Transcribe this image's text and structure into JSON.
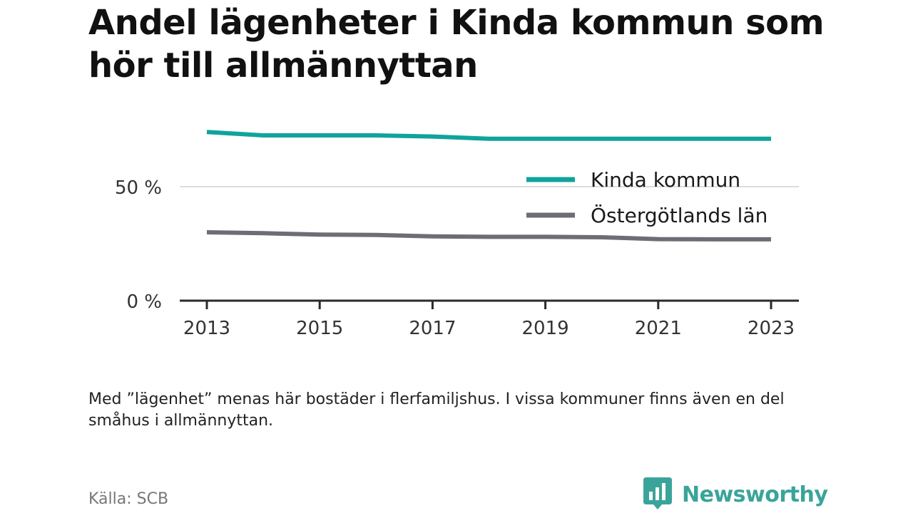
{
  "title": "Andel lägenheter i Kinda kommun som hör till allmännyttan",
  "note": "Med ”lägenhet” menas här bostäder i flerfamiljshus. I vissa kommuner finns även en del småhus i allmännyttan.",
  "source": "Källa: SCB",
  "brand": {
    "name": "Newsworthy",
    "color": "#3aa49a",
    "logo_icon": "bar-chart-speech-bubble-icon"
  },
  "chart_data": {
    "type": "line",
    "x": [
      2013,
      2014,
      2015,
      2016,
      2017,
      2018,
      2019,
      2020,
      2021,
      2022,
      2023
    ],
    "x_ticks": [
      2013,
      2015,
      2017,
      2019,
      2021,
      2023
    ],
    "x_tick_labels": [
      "2013",
      "2015",
      "2017",
      "2019",
      "2021",
      "2023"
    ],
    "y_ticks": [
      0,
      50
    ],
    "y_tick_labels": [
      "0 %",
      "50 %"
    ],
    "ylim": [
      0,
      80
    ],
    "grid": true,
    "legend_position": "top-right",
    "series": [
      {
        "name": "Kinda kommun",
        "color": "#10a39b",
        "values": [
          74,
          72.5,
          72.5,
          72.5,
          72,
          71,
          71,
          71,
          71,
          71,
          71
        ]
      },
      {
        "name": "Östergötlands län",
        "color": "#6e6d76",
        "values": [
          30,
          29.6,
          29,
          28.8,
          28.2,
          28,
          28,
          27.8,
          27,
          26.9,
          26.9
        ]
      }
    ]
  }
}
